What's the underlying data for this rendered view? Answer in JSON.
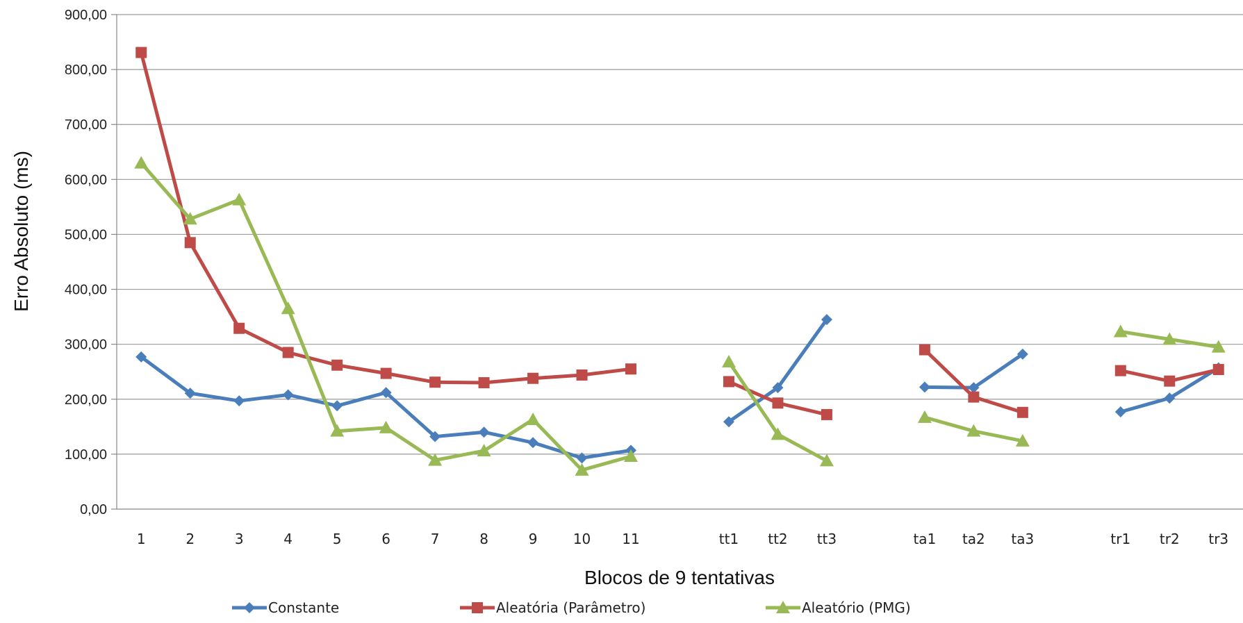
{
  "chart_data": {
    "type": "line",
    "title": "",
    "xlabel": "Blocos de 9 tentativas",
    "ylabel": "Erro Absoluto (ms)",
    "ylim": [
      0,
      900
    ],
    "yticks": [
      "0,00",
      "100,00",
      "200,00",
      "300,00",
      "400,00",
      "500,00",
      "600,00",
      "700,00",
      "800,00",
      "900,00"
    ],
    "grid": true,
    "legend_position": "bottom",
    "categories": [
      "1",
      "2",
      "3",
      "4",
      "5",
      "6",
      "7",
      "8",
      "9",
      "10",
      "11",
      "",
      "tt1",
      "tt2",
      "tt3",
      "",
      "ta1",
      "ta2",
      "ta3",
      "",
      "tr1",
      "tr2",
      "tr3"
    ],
    "segments": [
      [
        0,
        10
      ],
      [
        12,
        14
      ],
      [
        16,
        18
      ],
      [
        20,
        22
      ]
    ],
    "series": [
      {
        "name": "Constante",
        "color": "#4a7ebb",
        "marker": "diamond",
        "values": [
          277,
          211,
          197,
          208,
          188,
          212,
          132,
          140,
          121,
          93,
          107,
          null,
          159,
          221,
          345,
          null,
          222,
          221,
          282,
          null,
          177,
          202,
          257
        ]
      },
      {
        "name": "Aleatória (Parâmetro)",
        "color": "#be4b48",
        "marker": "square",
        "values": [
          831,
          485,
          329,
          285,
          262,
          247,
          231,
          230,
          238,
          244,
          255,
          null,
          232,
          193,
          172,
          null,
          290,
          204,
          176,
          null,
          252,
          233,
          254
        ]
      },
      {
        "name": "Aleatório (PMG)",
        "color": "#98b954",
        "marker": "triangle",
        "values": [
          630,
          528,
          563,
          365,
          142,
          148,
          89,
          106,
          163,
          71,
          96,
          null,
          268,
          136,
          88,
          null,
          167,
          142,
          124,
          null,
          323,
          309,
          295
        ]
      }
    ]
  }
}
